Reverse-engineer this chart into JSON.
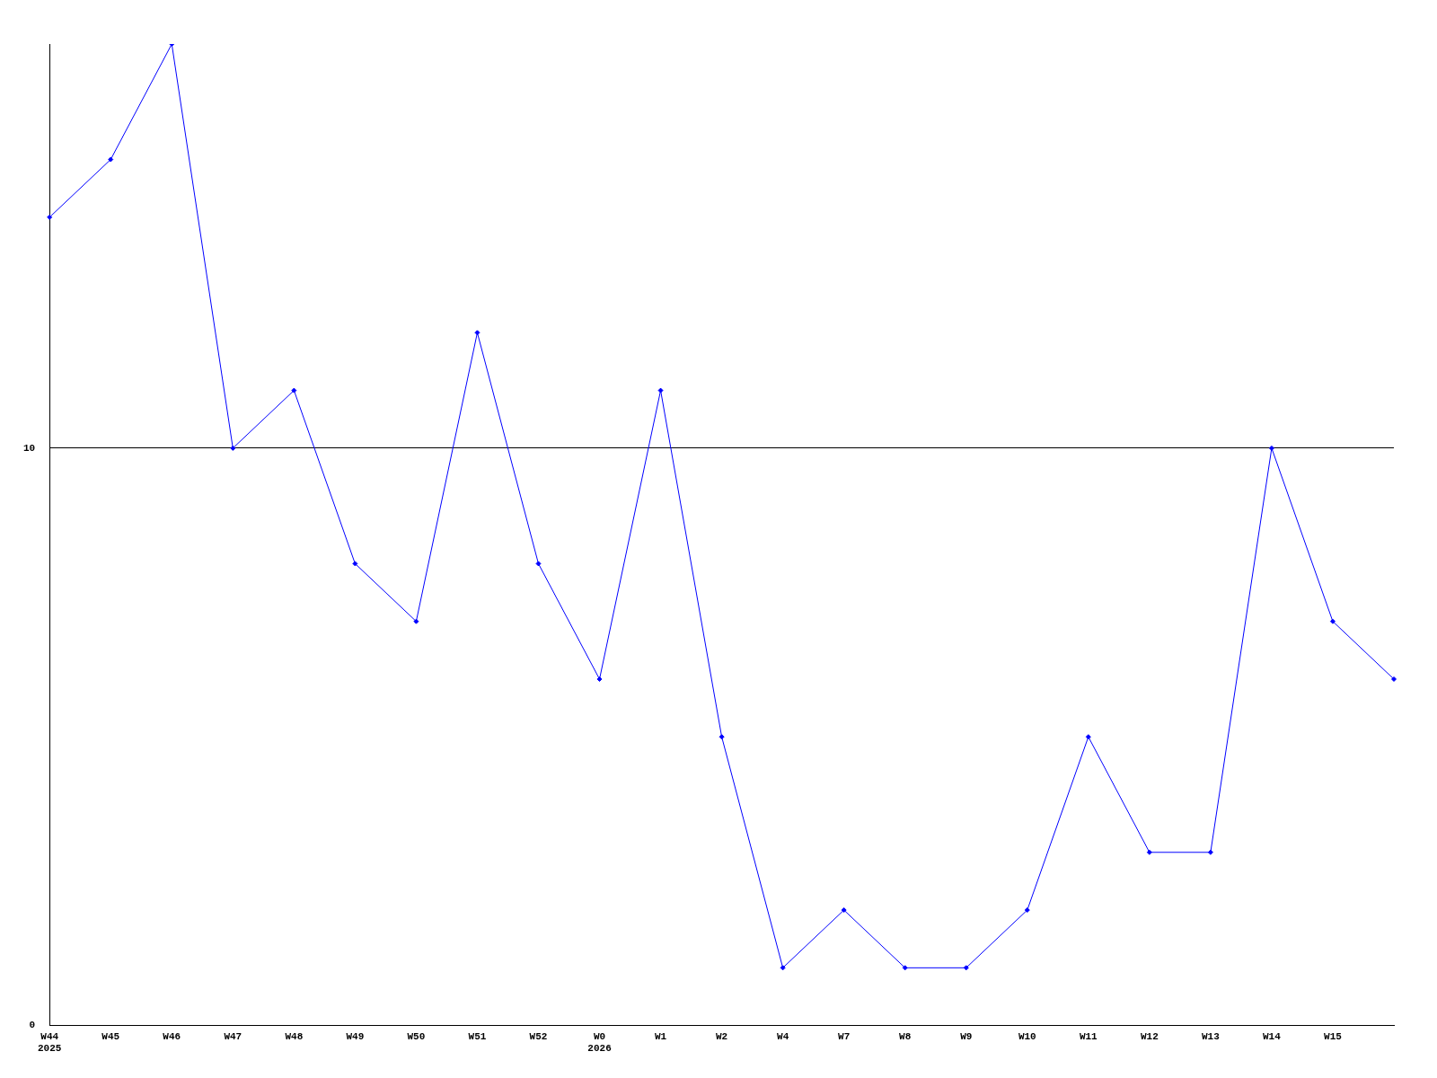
{
  "chart_data": {
    "type": "line",
    "categories": [
      "W44\n2025",
      "W45",
      "W46",
      "W47",
      "W48",
      "W49",
      "W50",
      "W51",
      "W52",
      "W0\n2026",
      "W1",
      "W2",
      "W4",
      "W7",
      "W8",
      "W9",
      "W10",
      "W11",
      "W12",
      "W13",
      "W14",
      "W15",
      null
    ],
    "series": [
      {
        "color": "#0000ff",
        "values": [
          14,
          15,
          17,
          10,
          11,
          8,
          7,
          12,
          8,
          6,
          11,
          5,
          1,
          2,
          1,
          1,
          2,
          5,
          3,
          3,
          10,
          7,
          6
        ]
      }
    ],
    "ylim": [
      0,
      17
    ],
    "yticks": [
      0,
      10
    ],
    "grid": "y",
    "marker": "diamond",
    "line_style": "solid",
    "legend": false
  }
}
